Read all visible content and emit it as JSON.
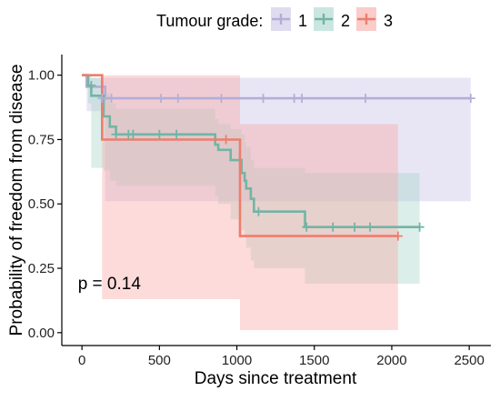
{
  "chart_data": {
    "type": "line",
    "step": true,
    "xlabel": "Days since treatment",
    "ylabel": "Probability of freedom from disease",
    "xlim": [
      -130,
      2640
    ],
    "ylim": [
      -0.05,
      1.08
    ],
    "xticks": [
      0,
      500,
      1000,
      1500,
      2000,
      2500
    ],
    "yticks": [
      0.0,
      0.25,
      0.5,
      0.75,
      1.0
    ],
    "ytick_labels": [
      "0.00",
      "0.25",
      "0.50",
      "0.75",
      "1.00"
    ],
    "grid": false,
    "legend": {
      "title": "Tumour grade:",
      "position": "top",
      "labels": [
        "1",
        "2",
        "3"
      ]
    },
    "annotation": {
      "text": "p = 0.14",
      "x": 150,
      "y": 0.19
    },
    "series": [
      {
        "name": "1",
        "color": "#b4aed6",
        "fill_color": "#c9c4e6",
        "steps": [
          [
            0,
            1.0
          ],
          [
            30,
            0.955
          ],
          [
            150,
            0.91
          ],
          [
            2510,
            0.91
          ]
        ],
        "ci": [
          [
            0,
            1.0,
            1.0
          ],
          [
            30,
            0.99,
            0.86
          ],
          [
            150,
            0.99,
            0.51
          ],
          [
            2510,
            0.99,
            0.51
          ]
        ],
        "censors": [
          [
            130,
            0.91
          ],
          [
            190,
            0.91
          ],
          [
            510,
            0.91
          ],
          [
            620,
            0.91
          ],
          [
            900,
            0.91
          ],
          [
            1170,
            0.91
          ],
          [
            1370,
            0.91
          ],
          [
            1420,
            0.91
          ],
          [
            1830,
            0.91
          ],
          [
            2510,
            0.91
          ]
        ]
      },
      {
        "name": "2",
        "color": "#72b5a4",
        "fill_color": "#a9d6cb",
        "steps": [
          [
            0,
            1.0
          ],
          [
            40,
            0.96
          ],
          [
            60,
            0.92
          ],
          [
            140,
            0.84
          ],
          [
            180,
            0.8
          ],
          [
            220,
            0.77
          ],
          [
            860,
            0.73
          ],
          [
            880,
            0.71
          ],
          [
            960,
            0.67
          ],
          [
            1030,
            0.62
          ],
          [
            1050,
            0.59
          ],
          [
            1060,
            0.56
          ],
          [
            1090,
            0.52
          ],
          [
            1110,
            0.47
          ],
          [
            1440,
            0.41
          ],
          [
            2180,
            0.41
          ]
        ],
        "ci": [
          [
            0,
            1.0,
            1.0
          ],
          [
            40,
            1.0,
            0.89
          ],
          [
            60,
            0.99,
            0.64
          ],
          [
            140,
            0.93,
            0.63
          ],
          [
            180,
            0.89,
            0.59
          ],
          [
            220,
            0.87,
            0.57
          ],
          [
            860,
            0.83,
            0.53
          ],
          [
            880,
            0.81,
            0.5
          ],
          [
            960,
            0.79,
            0.44
          ],
          [
            1030,
            0.77,
            0.4
          ],
          [
            1050,
            0.74,
            0.37
          ],
          [
            1060,
            0.72,
            0.33
          ],
          [
            1090,
            0.67,
            0.28
          ],
          [
            1110,
            0.64,
            0.25
          ],
          [
            1440,
            0.62,
            0.19
          ],
          [
            2180,
            0.62,
            0.19
          ]
        ],
        "censors": [
          [
            60,
            0.96
          ],
          [
            220,
            0.77
          ],
          [
            300,
            0.77
          ],
          [
            330,
            0.77
          ],
          [
            500,
            0.77
          ],
          [
            610,
            0.77
          ],
          [
            1140,
            0.47
          ],
          [
            1450,
            0.41
          ],
          [
            1620,
            0.41
          ],
          [
            1760,
            0.41
          ],
          [
            1860,
            0.41
          ],
          [
            2180,
            0.41
          ]
        ]
      },
      {
        "name": "3",
        "color": "#ee7d6c",
        "fill_color": "#f7aaa6",
        "steps": [
          [
            0,
            1.0
          ],
          [
            130,
            0.75
          ],
          [
            1020,
            0.375
          ],
          [
            2040,
            0.375
          ]
        ],
        "ci": [
          [
            0,
            1.0,
            1.0
          ],
          [
            130,
            1.0,
            0.13
          ],
          [
            1020,
            0.81,
            0.01
          ],
          [
            2040,
            0.81,
            0.01
          ]
        ],
        "censors": [
          [
            930,
            0.75
          ],
          [
            2040,
            0.375
          ]
        ]
      }
    ]
  }
}
